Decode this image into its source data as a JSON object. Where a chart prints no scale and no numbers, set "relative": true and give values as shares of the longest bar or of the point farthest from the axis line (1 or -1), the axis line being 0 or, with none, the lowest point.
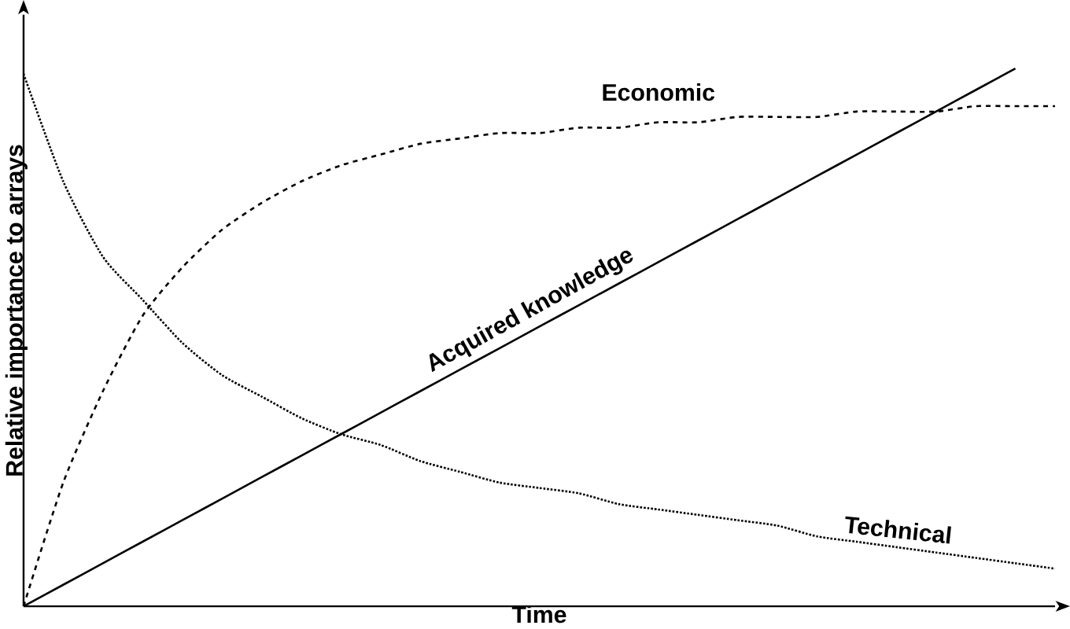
{
  "chart_data": {
    "type": "line",
    "relative": true,
    "xlabel": "Time",
    "ylabel": "Relative importance to arrays",
    "categories": [
      null,
      null,
      null,
      null,
      null,
      null,
      null,
      null,
      null,
      null,
      null,
      null,
      null,
      null,
      null,
      null,
      null,
      null,
      null,
      null,
      null,
      null,
      null,
      null,
      null,
      null,
      null
    ],
    "series": [
      {
        "name": "Economic",
        "color": "#000000",
        "line_style": "dashed",
        "values": [
          0,
          0.23,
          0.4,
          0.54,
          0.63,
          0.7,
          0.75,
          0.79,
          0.82,
          0.84,
          0.86,
          0.87,
          0.88,
          0.88,
          0.89,
          0.89,
          0.9,
          0.9,
          0.91,
          0.91,
          0.91,
          0.92,
          0.92,
          0.92,
          0.93,
          0.93,
          0.93
        ]
      },
      {
        "name": "Acquired knowledge",
        "color": "#000000",
        "line_style": "solid",
        "values": [
          0,
          0.04,
          0.08,
          0.12,
          0.16,
          0.2,
          0.24,
          0.28,
          0.32,
          0.36,
          0.4,
          0.44,
          0.48,
          0.52,
          0.56,
          0.6,
          0.64,
          0.68,
          0.72,
          0.76,
          0.8,
          0.84,
          0.88,
          0.92,
          0.96,
          1,
          null
        ]
      },
      {
        "name": "Technical",
        "color": "#000000",
        "line_style": "dotted",
        "values": [
          0.99,
          0.79,
          0.65,
          0.57,
          0.49,
          0.43,
          0.39,
          0.35,
          0.32,
          0.3,
          0.27,
          0.25,
          0.23,
          0.22,
          0.21,
          0.19,
          0.18,
          0.17,
          0.16,
          0.15,
          0.13,
          0.12,
          0.11,
          0.1,
          0.09,
          0.08,
          0.07
        ]
      }
    ],
    "legend": false,
    "marker": "none"
  }
}
